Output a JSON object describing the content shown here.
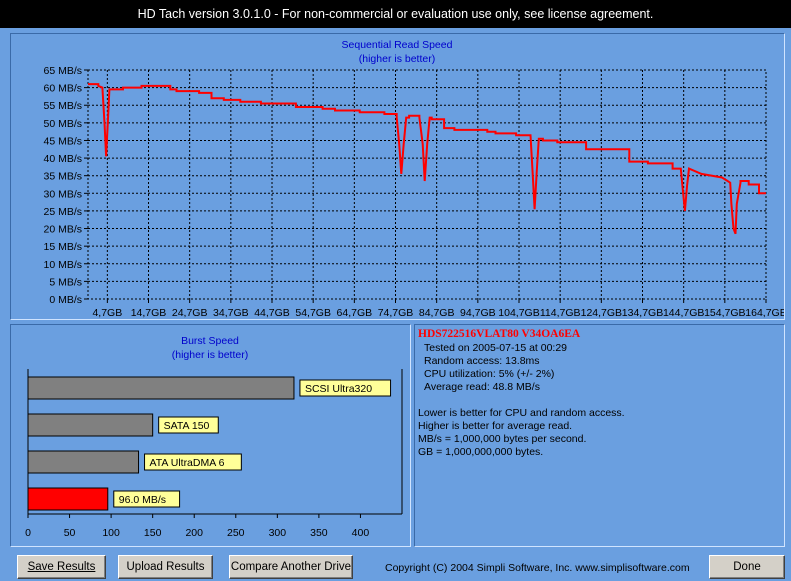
{
  "window": {
    "title": "HD Tach version 3.0.1.0  - For non-commercial or evaluation use only, see license agreement."
  },
  "colors": {
    "background": "#6a9fe0",
    "line": "#ff0000",
    "bar_gray": "#808080",
    "bar_red": "#ff0000",
    "label_bg": "#ffff99",
    "title_blue": "#0000cc"
  },
  "chart_data": [
    {
      "type": "line",
      "title": "Sequential Read Speed",
      "subtitle": "(higher is better)",
      "y_unit": "MB/s",
      "ylim": [
        0,
        65
      ],
      "yticks": [
        0,
        5,
        10,
        15,
        20,
        25,
        30,
        35,
        40,
        45,
        50,
        55,
        60,
        65
      ],
      "ytick_labels": [
        "0 MB/s",
        "5 MB/s",
        "10 MB/s",
        "15 MB/s",
        "20 MB/s",
        "25 MB/s",
        "30 MB/s",
        "35 MB/s",
        "40 MB/s",
        "45 MB/s",
        "50 MB/s",
        "55 MB/s",
        "60 MB/s",
        "65 MB/s"
      ],
      "xlim": [
        0,
        164.7
      ],
      "xticks": [
        4.7,
        14.7,
        24.7,
        34.7,
        44.7,
        54.7,
        64.7,
        74.7,
        84.7,
        94.7,
        104.7,
        114.7,
        124.7,
        134.7,
        144.7,
        154.7,
        164.7
      ],
      "xtick_labels": [
        "4,7GB",
        "14,7GB",
        "24,7GB",
        "34,7GB",
        "44,7GB",
        "54,7GB",
        "64,7GB",
        "74,7GB",
        "84,7GB",
        "94,7GB",
        "104,7GB",
        "114,7GB",
        "124,7GB",
        "134,7GB",
        "144,7GB",
        "154,7GB",
        "164,7GB"
      ],
      "grid": true,
      "series": [
        {
          "x": [
            0,
            2.5,
            2.5,
            3.5,
            4.0,
            4.4,
            4.8,
            5.2,
            5.5,
            5.5,
            8.5,
            8.5,
            13,
            13,
            20,
            20,
            21.5,
            21.5,
            27,
            27,
            30,
            30,
            33,
            33,
            37,
            37,
            42,
            42,
            50.5,
            50.5,
            57,
            57,
            60,
            60,
            66,
            66,
            72,
            72,
            75,
            75,
            75.6,
            76.1,
            76.7,
            77.3,
            78,
            78,
            80.5,
            80.5,
            81.3,
            81.8,
            82.4,
            83.0,
            83.5,
            83.5,
            86.5,
            86.5,
            89,
            89,
            97,
            97,
            99,
            99,
            104,
            104,
            107.5,
            108,
            108.5,
            109,
            109.5,
            110.5,
            110.5,
            114,
            114,
            121,
            121,
            131.5,
            131.5,
            136,
            136,
            142,
            142,
            144,
            144.5,
            145,
            145.5,
            146,
            146,
            149,
            149,
            154,
            154,
            156,
            156.3,
            156.8,
            157.3,
            157.6,
            158.5,
            158.5,
            160.5,
            160.5,
            163,
            163,
            164.7
          ],
          "y": [
            61,
            61,
            60.5,
            60,
            50,
            40.5,
            50,
            59.5,
            59.5,
            59.5,
            59.5,
            60,
            60,
            60.5,
            60.5,
            59.5,
            59.5,
            59,
            59,
            58.5,
            58.5,
            57,
            57,
            56.5,
            56.5,
            56,
            56,
            55.5,
            55.5,
            54.5,
            54.5,
            54,
            54,
            53.5,
            53.5,
            53,
            53,
            52.5,
            52.5,
            51.5,
            44,
            35.5,
            44,
            51.5,
            51.5,
            52,
            52,
            51.5,
            44,
            33.5,
            44,
            51.5,
            51.5,
            51,
            51,
            48.5,
            48.5,
            48,
            48,
            47.5,
            47.5,
            47,
            47,
            46.5,
            46.5,
            36,
            25.5,
            36,
            45.5,
            45.5,
            45,
            45,
            44.5,
            44.5,
            42.5,
            42.5,
            39,
            39,
            38.5,
            38.5,
            37,
            37,
            31,
            25,
            32,
            37,
            37,
            35.5,
            35.5,
            34.5,
            34.5,
            33,
            27,
            20,
            18.5,
            27,
            33,
            33.5,
            33.5,
            32.5,
            32.5,
            30,
            30
          ]
        }
      ]
    },
    {
      "type": "bar",
      "orientation": "horizontal",
      "title": "Burst Speed",
      "subtitle": "(higher is better)",
      "xlim": [
        0,
        450
      ],
      "xticks": [
        0,
        50,
        100,
        150,
        200,
        250,
        300,
        350,
        400
      ],
      "grid": false,
      "categories": [
        "SCSI Ultra320",
        "SATA 150",
        "ATA UltraDMA 6",
        "96.0 MB/s"
      ],
      "values": [
        320,
        150,
        133,
        96
      ],
      "bar_colors": [
        "#808080",
        "#808080",
        "#808080",
        "#ff0000"
      ]
    }
  ],
  "info": {
    "drive": "HDS722516VLAT80 V34OA6EA",
    "tested": "Tested on 2005-07-15 at 00:29",
    "random_access": "Random access: 13.8ms",
    "cpu": "CPU utilization: 5% (+/- 2%)",
    "average_read": "Average read: 48.8 MB/s",
    "note1": "Lower is better for CPU and random access.",
    "note2": "Higher is better for average read.",
    "note3": "MB/s = 1,000,000 bytes per second.",
    "note4": "GB = 1,000,000,000 bytes."
  },
  "buttons": {
    "save": "Save Results",
    "upload": "Upload Results",
    "compare": "Compare Another Drive",
    "done": "Done"
  },
  "footer": {
    "copyright": "Copyright (C) 2004 Simpli Software, Inc. www.simplisoftware.com"
  }
}
